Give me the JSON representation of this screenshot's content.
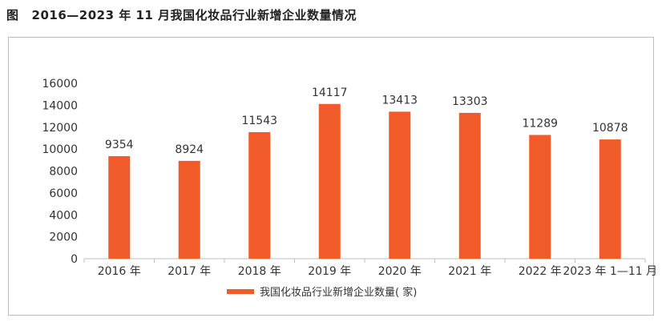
{
  "figure": {
    "label": "图",
    "title": "2016—2023 年 11 月我国化妆品行业新增企业数量情况"
  },
  "colors": {
    "bar": "#f15a29",
    "axis": "#bfbfbf",
    "text": "#333333"
  },
  "chart_data": {
    "type": "bar",
    "title": "2016—2023 年 11 月我国化妆品行业新增企业数量情况",
    "categories": [
      "2016 年",
      "2017 年",
      "2018 年",
      "2019 年",
      "2020 年",
      "2021 年",
      "2022 年",
      "2023 年 1—11 月"
    ],
    "series": [
      {
        "name": "我国化妆品行业新增企业数量( 家)",
        "values": [
          9354,
          8924,
          11543,
          14117,
          13413,
          13303,
          11289,
          10878
        ]
      }
    ],
    "yticks": [
      0,
      2000,
      4000,
      6000,
      8000,
      10000,
      12000,
      14000,
      16000
    ],
    "ylim": [
      0,
      16000
    ],
    "xlabel": "",
    "ylabel": "",
    "grid": false,
    "legend": "bottom-center"
  }
}
